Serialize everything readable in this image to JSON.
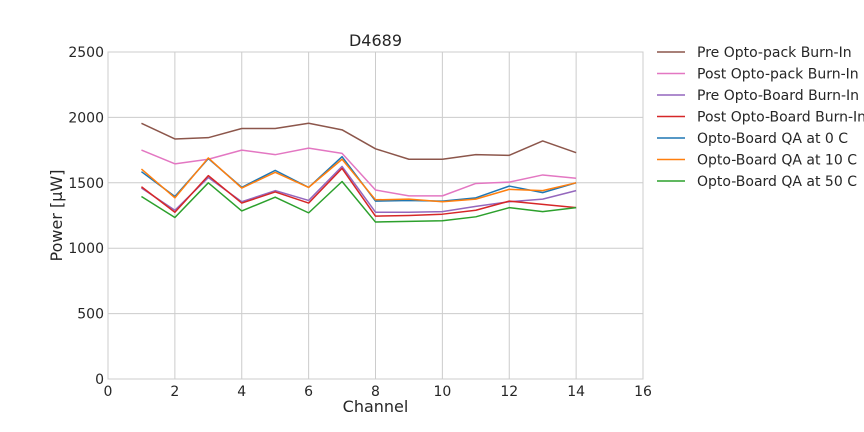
{
  "chart_data": {
    "type": "line",
    "title": "D4689",
    "xlabel": "Channel",
    "ylabel": "Power [μW]",
    "xlim": [
      0,
      16
    ],
    "ylim": [
      0,
      2500
    ],
    "xticks": [
      0,
      2,
      4,
      6,
      8,
      10,
      12,
      14,
      16
    ],
    "yticks": [
      0,
      500,
      1000,
      1500,
      2000,
      2500
    ],
    "grid": true,
    "legend_position": "outside-right",
    "x": [
      1,
      2,
      3,
      4,
      5,
      6,
      7,
      8,
      9,
      10,
      11,
      12,
      13,
      14
    ],
    "series": [
      {
        "name": "Pre Opto-pack Burn-In",
        "color": "#8c564b",
        "values": [
          1955,
          1835,
          1845,
          1915,
          1915,
          1955,
          1905,
          1760,
          1680,
          1680,
          1715,
          1710,
          1820,
          1730
        ]
      },
      {
        "name": "Post Opto-pack Burn-In",
        "color": "#e377c2",
        "values": [
          1750,
          1645,
          1680,
          1750,
          1715,
          1765,
          1725,
          1445,
          1400,
          1400,
          1495,
          1505,
          1560,
          1535
        ]
      },
      {
        "name": "Pre Opto-Board Burn-In",
        "color": "#9467bd",
        "values": [
          1460,
          1290,
          1540,
          1355,
          1440,
          1365,
          1625,
          1275,
          1275,
          1280,
          1320,
          1355,
          1375,
          1440
        ]
      },
      {
        "name": "Post Opto-Board Burn-In",
        "color": "#d62728",
        "values": [
          1470,
          1275,
          1555,
          1345,
          1430,
          1345,
          1610,
          1245,
          1250,
          1260,
          1290,
          1360,
          1335,
          1310
        ]
      },
      {
        "name": "Opto-Board QA at 0 C",
        "color": "#1f77b4",
        "values": [
          1585,
          1395,
          1685,
          1465,
          1595,
          1465,
          1700,
          1360,
          1365,
          1360,
          1385,
          1475,
          1425,
          1500
        ]
      },
      {
        "name": "Opto-Board QA at 10 C",
        "color": "#ff7f0e",
        "values": [
          1605,
          1385,
          1690,
          1460,
          1580,
          1465,
          1680,
          1370,
          1375,
          1355,
          1375,
          1450,
          1440,
          1500
        ]
      },
      {
        "name": "Opto-Board QA at 50 C",
        "color": "#2ca02c",
        "values": [
          1395,
          1235,
          1500,
          1285,
          1390,
          1270,
          1510,
          1200,
          1205,
          1210,
          1240,
          1310,
          1280,
          1310
        ]
      }
    ]
  }
}
